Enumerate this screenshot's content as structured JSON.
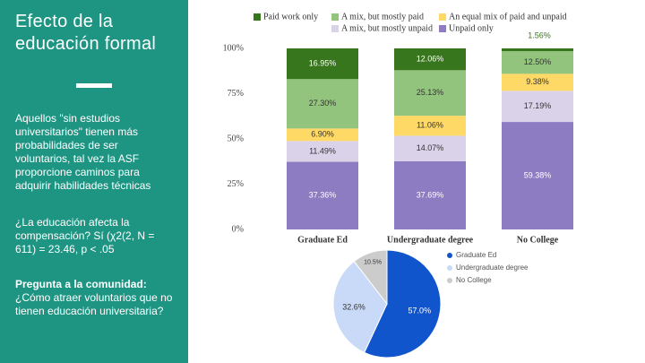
{
  "slide": {
    "title": "Efecto de la educación formal",
    "paragraphs": [
      "Aquellos \"sin estudios universitarios\" tienen más probabilidades de ser voluntarios, tal vez la ASF proporcione caminos para adquirir habilidades técnicas",
      "¿La educación afecta la compensación? Sí (χ2(2, N = 611) = 23.46, p < .05"
    ],
    "question_heading": "Pregunta a la comunidad:",
    "question": "¿Cómo atraer voluntarios que no tienen educación universitaria?"
  },
  "chart_data": [
    {
      "type": "bar",
      "stacked": true,
      "categories": [
        "Graduate Ed",
        "Undergraduate degree",
        "No College"
      ],
      "series": [
        {
          "name": "Paid work only",
          "color": "#38761d",
          "values": [
            16.95,
            12.06,
            1.56
          ],
          "value_labels": [
            "16.95%",
            "12.06%",
            "1.56%"
          ]
        },
        {
          "name": "A mix, but mostly paid",
          "color": "#93c47d",
          "values": [
            27.3,
            25.13,
            12.5
          ],
          "value_labels": [
            "27.30%",
            "25.13%",
            "12.50%"
          ]
        },
        {
          "name": "An equal mix of paid and unpaid",
          "color": "#ffd966",
          "values": [
            6.9,
            11.06,
            9.38
          ],
          "value_labels": [
            "6.90%",
            "11.06%",
            "9.38%"
          ]
        },
        {
          "name": "A mix, but mostly unpaid",
          "color": "#d9d2e9",
          "values": [
            11.49,
            14.07,
            17.19
          ],
          "value_labels": [
            "11.49%",
            "14.07%",
            "17.19%"
          ]
        },
        {
          "name": "Unpaid only",
          "color": "#8e7cc3",
          "values": [
            37.36,
            37.69,
            59.38
          ],
          "value_labels": [
            "37.36%",
            "37.69%",
            "59.38%"
          ]
        }
      ],
      "ylim": [
        0,
        100
      ],
      "yticks": [
        {
          "value": 0,
          "label": "0%"
        },
        {
          "value": 25,
          "label": "25%"
        },
        {
          "value": 50,
          "label": "50%"
        },
        {
          "value": 75,
          "label": "75%"
        },
        {
          "value": 100,
          "label": "100%"
        }
      ],
      "legend": "top"
    },
    {
      "type": "pie",
      "categories": [
        "Graduate Ed",
        "Undergraduate degree",
        "No College"
      ],
      "values": [
        57.0,
        32.6,
        10.5
      ],
      "value_labels": [
        "57.0%",
        "32.6%",
        "10.5%"
      ],
      "colors": [
        "#1155cc",
        "#c9daf8",
        "#cccccc"
      ],
      "legend": "right"
    }
  ]
}
